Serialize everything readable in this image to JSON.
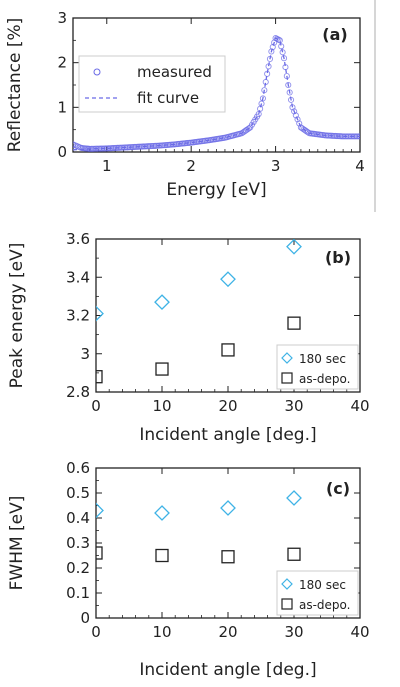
{
  "chart_data": [
    {
      "panel": "(a)",
      "type": "line",
      "xlabel": "Energy [eV]",
      "ylabel": "Reflectance [%]",
      "xlim": [
        0.6,
        4
      ],
      "ylim": [
        0,
        3
      ],
      "xticks": [
        "1",
        "2",
        "3",
        "4"
      ],
      "yticks": [
        "0",
        "1",
        "2",
        "3"
      ],
      "legend_position": "left",
      "series": [
        {
          "name": "measured",
          "marker": "circle",
          "color": "#6a6ae6",
          "x": [
            0.6,
            0.7,
            0.8,
            1.0,
            1.2,
            1.4,
            1.6,
            1.8,
            2.0,
            2.2,
            2.4,
            2.6,
            2.7,
            2.8,
            2.85,
            2.9,
            2.95,
            3.0,
            3.05,
            3.1,
            3.15,
            3.2,
            3.3,
            3.4,
            3.6,
            3.8,
            4.0
          ],
          "y": [
            0.17,
            0.09,
            0.07,
            0.08,
            0.1,
            0.12,
            0.14,
            0.17,
            0.21,
            0.26,
            0.32,
            0.42,
            0.55,
            0.85,
            1.2,
            1.75,
            2.25,
            2.55,
            2.5,
            2.1,
            1.5,
            1.0,
            0.55,
            0.42,
            0.37,
            0.35,
            0.35
          ]
        },
        {
          "name": "fit curve",
          "style": "dashed",
          "color": "#6a6ae6",
          "x": [
            0.6,
            0.8,
            1.0,
            1.2,
            1.4,
            1.6,
            1.8,
            2.0,
            2.2,
            2.4,
            2.6,
            2.7,
            2.8,
            2.85,
            2.9,
            2.95,
            3.0,
            3.05,
            3.1,
            3.15,
            3.2,
            3.3,
            3.4,
            3.6,
            3.8,
            4.0
          ],
          "y": [
            0.05,
            0.07,
            0.08,
            0.1,
            0.12,
            0.14,
            0.17,
            0.21,
            0.26,
            0.32,
            0.42,
            0.55,
            0.85,
            1.2,
            1.75,
            2.25,
            2.55,
            2.5,
            2.1,
            1.5,
            1.0,
            0.55,
            0.42,
            0.37,
            0.35,
            0.35
          ]
        }
      ]
    },
    {
      "panel": "(b)",
      "type": "scatter",
      "xlabel": "Incident angle [deg.]",
      "ylabel": "Peak energy [eV]",
      "xlim": [
        0,
        40
      ],
      "ylim": [
        2.8,
        3.6
      ],
      "xticks": [
        "0",
        "10",
        "20",
        "30",
        "40"
      ],
      "yticks": [
        "2.8",
        "3",
        "3.2",
        "3.4",
        "3.6"
      ],
      "legend_position": "bottom-right",
      "series": [
        {
          "name": "180 sec",
          "marker": "diamond",
          "color": "#3fb3e6",
          "x": [
            0,
            10,
            20,
            30
          ],
          "y": [
            3.21,
            3.27,
            3.39,
            3.56
          ]
        },
        {
          "name": "as-depo.",
          "marker": "square",
          "color": "#222222",
          "x": [
            0,
            10,
            20,
            30
          ],
          "y": [
            2.88,
            2.92,
            3.02,
            3.16
          ]
        }
      ]
    },
    {
      "panel": "(c)",
      "type": "scatter",
      "xlabel": "Incident angle [deg.]",
      "ylabel": "FWHM [eV]",
      "xlim": [
        0,
        40
      ],
      "ylim": [
        0,
        0.6
      ],
      "xticks": [
        "0",
        "10",
        "20",
        "30",
        "40"
      ],
      "yticks": [
        "0",
        "0.1",
        "0.2",
        "0.3",
        "0.4",
        "0.5",
        "0.6"
      ],
      "legend_position": "bottom-right",
      "series": [
        {
          "name": "180 sec",
          "marker": "diamond",
          "color": "#3fb3e6",
          "x": [
            0,
            10,
            20,
            30
          ],
          "y": [
            0.43,
            0.42,
            0.44,
            0.48
          ]
        },
        {
          "name": "as-depo.",
          "marker": "square",
          "color": "#222222",
          "x": [
            0,
            10,
            20,
            30
          ],
          "y": [
            0.26,
            0.25,
            0.245,
            0.255
          ]
        }
      ]
    }
  ]
}
